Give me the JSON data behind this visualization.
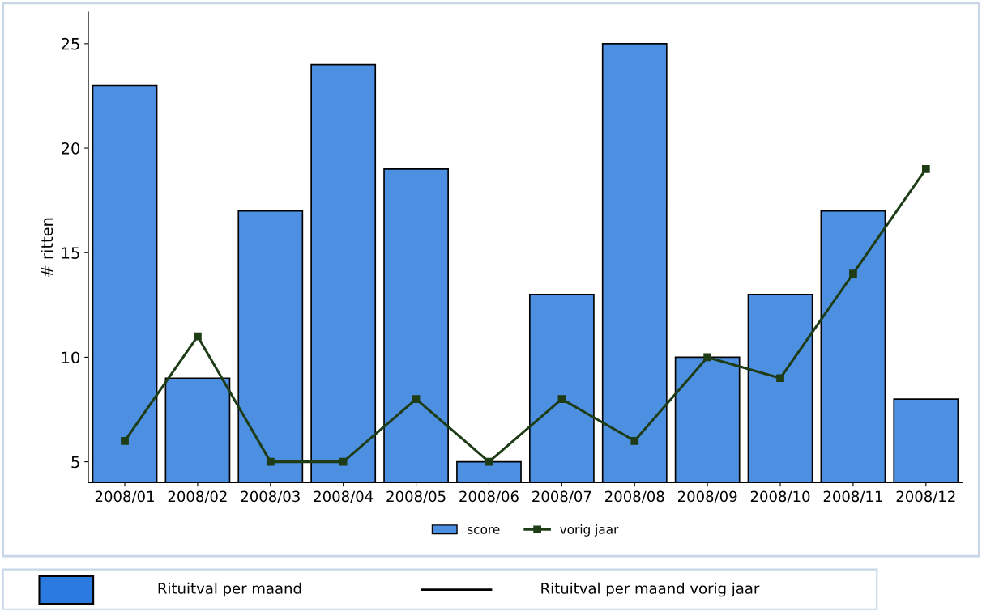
{
  "chart_data": {
    "type": "bar",
    "ylabel": "# ritten",
    "categories": [
      "2008/01",
      "2008/02",
      "2008/03",
      "2008/04",
      "2008/05",
      "2008/06",
      "2008/07",
      "2008/08",
      "2008/09",
      "2008/10",
      "2008/11",
      "2008/12"
    ],
    "series": [
      {
        "name": "score",
        "color": "#4d8fe0",
        "values": [
          23,
          9,
          17,
          24,
          19,
          5,
          13,
          25,
          10,
          13,
          17,
          8
        ]
      },
      {
        "name": "vorig jaar",
        "type": "line",
        "color": "#1e3d17",
        "marker": "square",
        "values": [
          6,
          11,
          5,
          5,
          8,
          5,
          8,
          6,
          10,
          9,
          14,
          19
        ]
      }
    ],
    "ylim": [
      4,
      26.5
    ],
    "yticks": [
      5,
      10,
      15,
      20,
      25
    ],
    "grid": false,
    "legend": "bottom",
    "annotations": [
      "Rituitval per maand",
      "Rituitval per maand vorig jaar"
    ]
  }
}
